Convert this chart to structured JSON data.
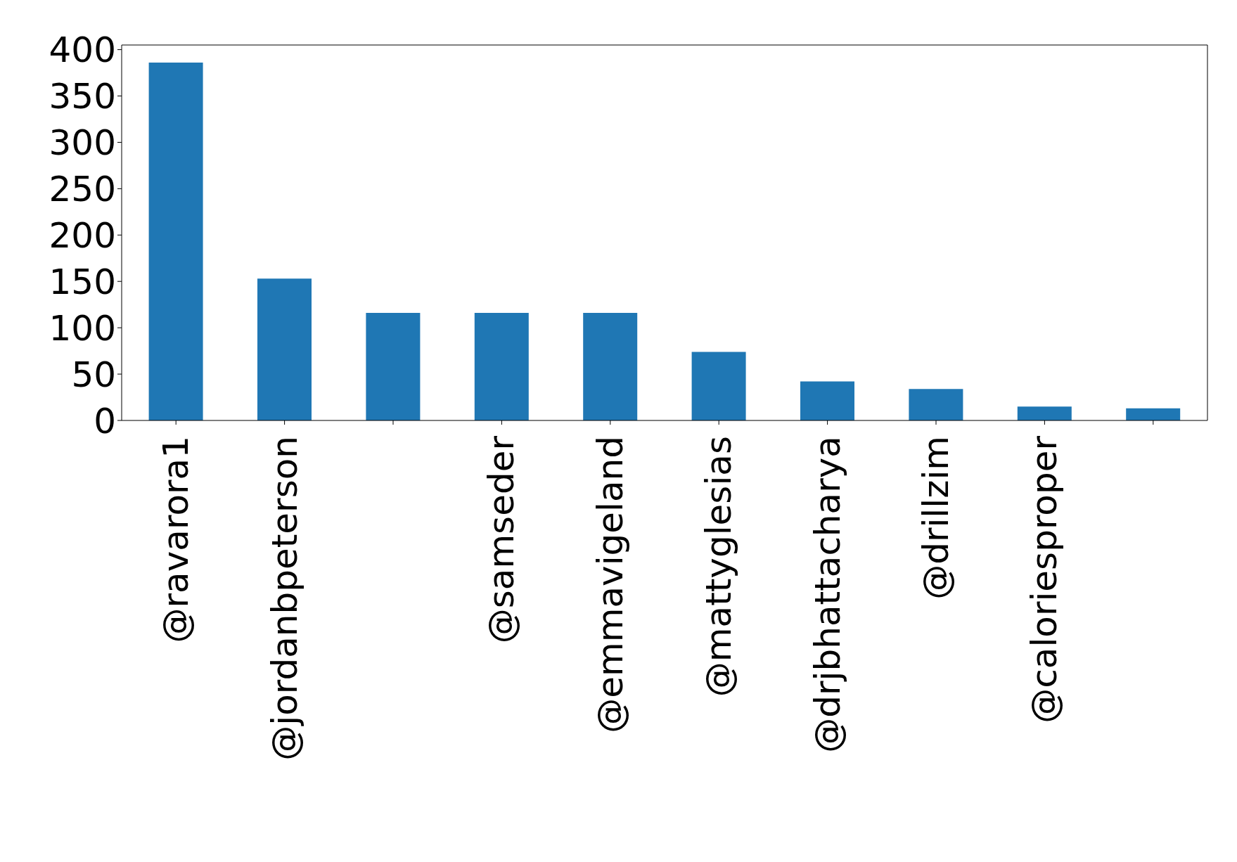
{
  "chart_data": {
    "type": "bar",
    "categories": [
      "@ravarora1",
      "@jordanbpeterson",
      null,
      "@samseder",
      "@emmavigeland",
      "@mattyglesias",
      "@drjbhattacharya",
      "@drillzim",
      "@caloriesproper",
      null
    ],
    "values": [
      386,
      153,
      116,
      116,
      116,
      74,
      42,
      34,
      15,
      13
    ],
    "color": "#1f77b4",
    "ylim": [
      0,
      405
    ],
    "yticks": [
      0,
      50,
      100,
      150,
      200,
      250,
      300,
      350,
      400
    ],
    "grid": false,
    "legend": false
  }
}
